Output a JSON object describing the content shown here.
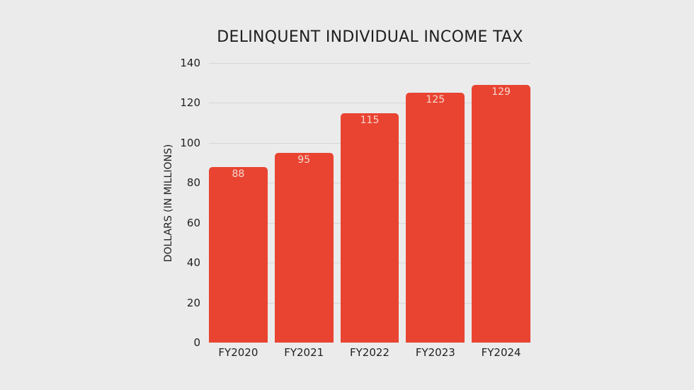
{
  "chart_data": {
    "type": "bar",
    "title": "DELINQUENT INDIVIDUAL INCOME TAX",
    "xlabel": "",
    "ylabel": "DOLLARS (IN MILLIONS)",
    "categories": [
      "FY2020",
      "FY2021",
      "FY2022",
      "FY2023",
      "FY2024"
    ],
    "values": [
      88,
      95,
      115,
      125,
      129
    ],
    "data_labels": [
      "88",
      "95",
      "115",
      "125",
      "129"
    ],
    "ylim": [
      0,
      140
    ],
    "yticks": [
      0,
      20,
      40,
      60,
      80,
      100,
      120,
      140
    ],
    "grid": true,
    "legend": null,
    "colors": {
      "bar": "#e94431",
      "background": "#ebebeb",
      "bar_label": "#f6d9d2"
    }
  }
}
